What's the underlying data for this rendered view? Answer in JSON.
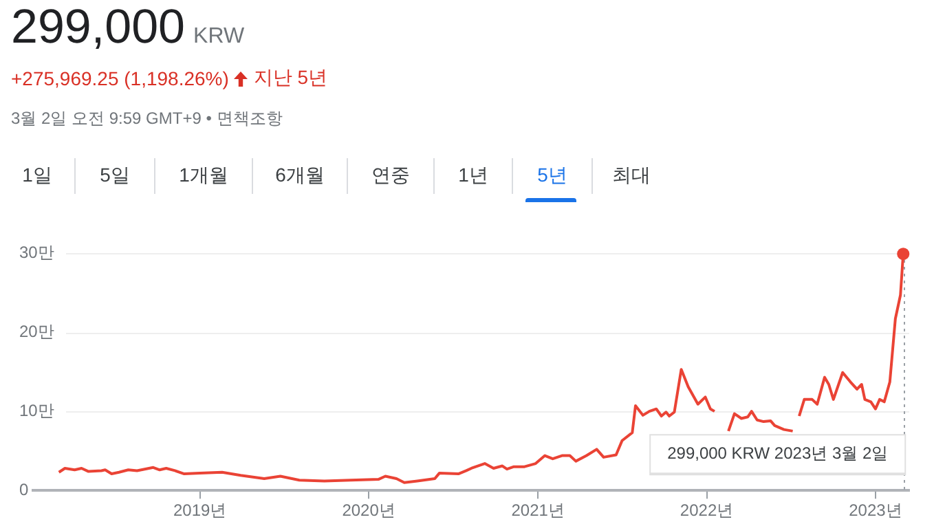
{
  "chart_data": {
    "type": "line",
    "title": "299,000",
    "subtitle": "+275,969.25 (1,198.26%)",
    "annotations": [
      "KRW",
      "지난 5년",
      "3월 2일 오전 9:59 GMT+9 • 면책조항",
      "1일",
      "5일",
      "1개월",
      "6개월",
      "연중",
      "1년",
      "5년",
      "최대",
      "299,000 KRW 2023년 3월 2일"
    ],
    "x": [
      "2018-03-02",
      "2018-03-15",
      "2018-04-05",
      "2018-04-20",
      "2018-05-05",
      "2018-06-02",
      "2018-06-10",
      "2018-06-24",
      "2018-07-10",
      "2018-07-30",
      "2018-08-18",
      "2018-09-22",
      "2018-10-06",
      "2018-10-20",
      "2018-11-08",
      "2018-11-28",
      "2019-01-01",
      "2019-02-18",
      "2019-03-30",
      "2019-05-20",
      "2019-06-24",
      "2019-08-04",
      "2019-09-27",
      "2019-11-23",
      "2020-01-22",
      "2020-02-06",
      "2020-03-01",
      "2020-03-18",
      "2020-04-15",
      "2020-05-23",
      "2020-06-02",
      "2020-07-13",
      "2020-07-30",
      "2020-08-10",
      "2020-09-08",
      "2020-09-27",
      "2020-10-16",
      "2020-10-26",
      "2020-11-10",
      "2020-12-03",
      "2020-12-27",
      "2021-01-16",
      "2021-02-02",
      "2021-02-22",
      "2021-03-11",
      "2021-03-24",
      "2021-04-16",
      "2021-05-08",
      "2021-05-23",
      "2021-06-19",
      "2021-07-02",
      "2021-07-24",
      "2021-07-31",
      "2021-08-16",
      "2021-08-30",
      "2021-09-14",
      "2021-09-25",
      "2021-10-05",
      "2021-10-12",
      "2021-10-23",
      "2021-11-07",
      "2021-11-22",
      "2021-12-13",
      "2021-12-29",
      "2022-01-09",
      "2022-01-18",
      "2022-01-27",
      "2022-02-17",
      "2022-03-02",
      "2022-03-17",
      "2022-03-31",
      "2022-04-08",
      "2022-04-20",
      "2022-05-04",
      "2022-05-19",
      "2022-05-28",
      "2022-06-17",
      "2022-07-06",
      "2022-07-15",
      "2022-07-20",
      "2022-07-31",
      "2022-08-17",
      "2022-08-28",
      "2022-09-13",
      "2022-09-22",
      "2022-10-02",
      "2022-10-22",
      "2022-11-08",
      "2022-11-22",
      "2022-12-02",
      "2022-12-09",
      "2022-12-22",
      "2023-01-01",
      "2023-01-10",
      "2023-01-20",
      "2023-02-01",
      "2023-02-13",
      "2023-02-24",
      "2023-03-02"
    ],
    "series": [
      {
        "color": "#ea4335",
        "values": [
          2.3,
          2.8,
          2.6,
          2.8,
          2.4,
          2.5,
          2.6,
          2.1,
          2.3,
          2.6,
          2.5,
          2.9,
          2.6,
          2.8,
          2.5,
          2.1,
          2.2,
          2.3,
          1.9,
          1.5,
          1.8,
          1.3,
          1.2,
          1.3,
          1.4,
          1.8,
          1.5,
          1.0,
          1.2,
          1.5,
          2.2,
          2.1,
          2.5,
          2.8,
          3.4,
          2.8,
          3.1,
          2.7,
          3.0,
          3.0,
          3.4,
          4.4,
          4.0,
          4.4,
          4.4,
          3.7,
          4.4,
          5.2,
          4.2,
          4.5,
          6.3,
          7.3,
          10.7,
          9.5,
          10.0,
          10.3,
          9.4,
          9.9,
          9.4,
          9.9,
          15.3,
          13.1,
          10.9,
          11.8,
          10.3,
          10.0,
          null,
          7.5,
          9.7,
          9.1,
          9.3,
          10.0,
          8.9,
          8.7,
          8.8,
          8.2,
          7.7,
          7.5,
          null,
          9.4,
          11.5,
          11.5,
          10.9,
          14.3,
          13.4,
          11.5,
          14.9,
          13.7,
          12.8,
          13.4,
          11.5,
          11.2,
          10.3,
          11.5,
          11.2,
          13.7,
          21.7,
          24.7,
          29.9
        ]
      }
    ],
    "xlim": [
      "2018-01-05",
      "2023-03-15"
    ],
    "xticks": [
      {
        "value": "2019-01-01",
        "label": "2019년"
      },
      {
        "value": "2020-01-01",
        "label": "2020년"
      },
      {
        "value": "2021-01-01",
        "label": "2021년"
      },
      {
        "value": "2022-01-01",
        "label": "2022년"
      },
      {
        "value": "2023-01-01",
        "label": "2023년"
      }
    ],
    "ylim": [
      0,
      30
    ],
    "yticks": [
      0,
      {
        "value": 10,
        "label": "10만"
      },
      {
        "value": 20,
        "label": "20만"
      },
      {
        "value": 30,
        "label": "30만"
      }
    ],
    "ref_lines": [
      {
        "axis": "x",
        "value": "2023-03-02",
        "color": "#9aa0a6",
        "line_style": "dotted"
      }
    ],
    "grid": "y",
    "legend": false,
    "marker": "none",
    "line_style": "solid"
  }
}
